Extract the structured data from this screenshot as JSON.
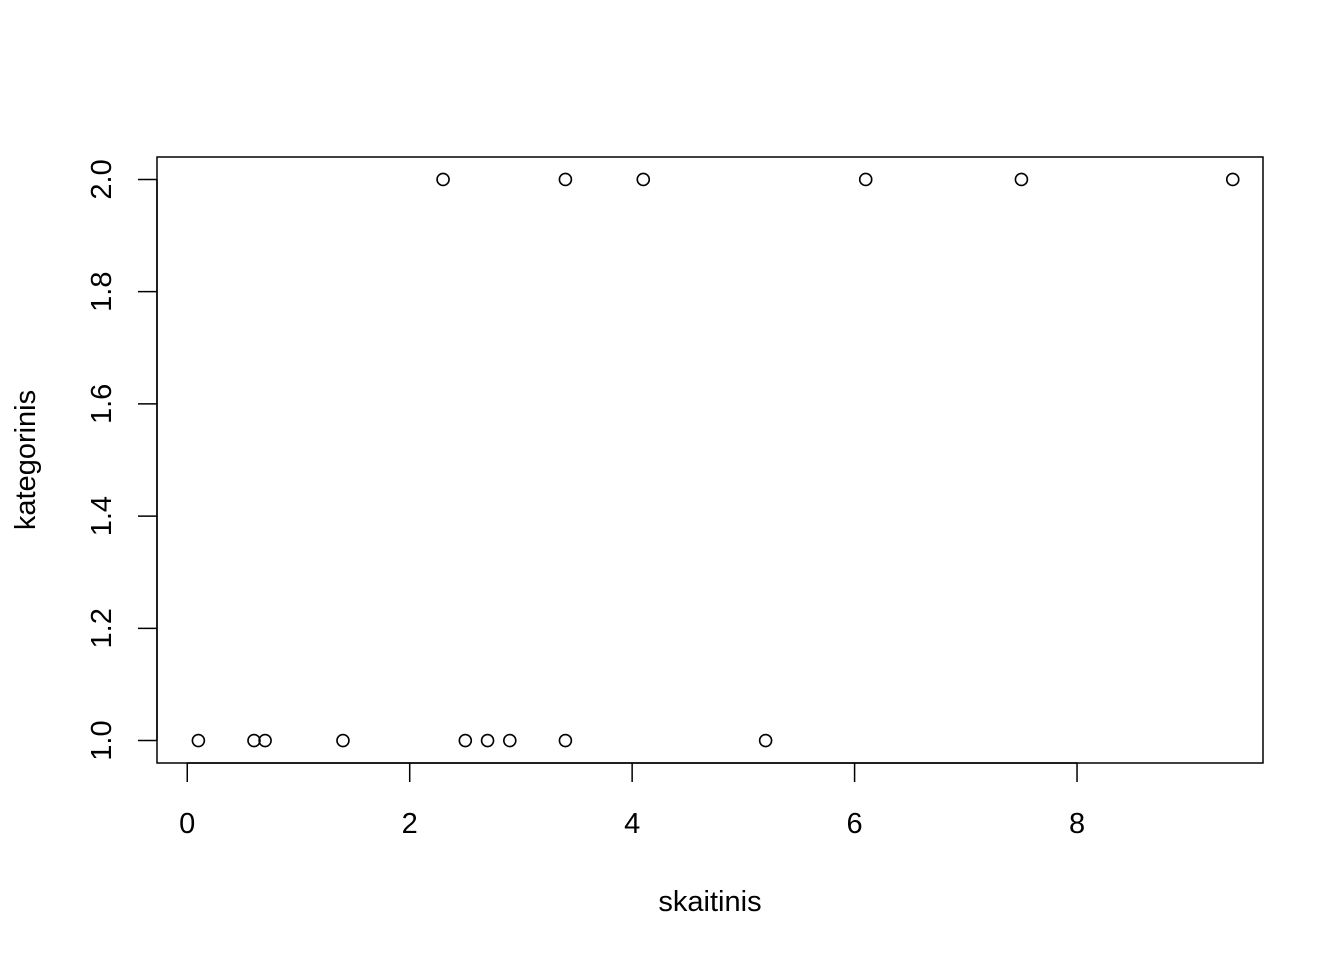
{
  "chart_data": {
    "type": "scatter",
    "title": "",
    "xlabel": "skaitinis",
    "ylabel": "kategorinis",
    "xlim": [
      -0.272,
      9.672
    ],
    "ylim": [
      0.96,
      2.04
    ],
    "xticks": [
      0,
      2,
      4,
      6,
      8
    ],
    "xtick_labels": [
      "0",
      "2",
      "4",
      "6",
      "8"
    ],
    "yticks": [
      1.0,
      1.2,
      1.4,
      1.6,
      1.8,
      2.0
    ],
    "ytick_labels": [
      "1.0",
      "1.2",
      "1.4",
      "1.6",
      "1.8",
      "2.0"
    ],
    "grid": false,
    "marker": "open-circle",
    "color": "#000000",
    "points": [
      {
        "x": 0.1,
        "y": 1
      },
      {
        "x": 0.6,
        "y": 1
      },
      {
        "x": 0.7,
        "y": 1
      },
      {
        "x": 1.4,
        "y": 1
      },
      {
        "x": 2.5,
        "y": 1
      },
      {
        "x": 2.7,
        "y": 1
      },
      {
        "x": 2.9,
        "y": 1
      },
      {
        "x": 3.4,
        "y": 1
      },
      {
        "x": 5.2,
        "y": 1
      },
      {
        "x": 2.3,
        "y": 2
      },
      {
        "x": 3.4,
        "y": 2
      },
      {
        "x": 4.1,
        "y": 2
      },
      {
        "x": 6.1,
        "y": 2
      },
      {
        "x": 7.5,
        "y": 2
      },
      {
        "x": 9.4,
        "y": 2
      }
    ]
  }
}
